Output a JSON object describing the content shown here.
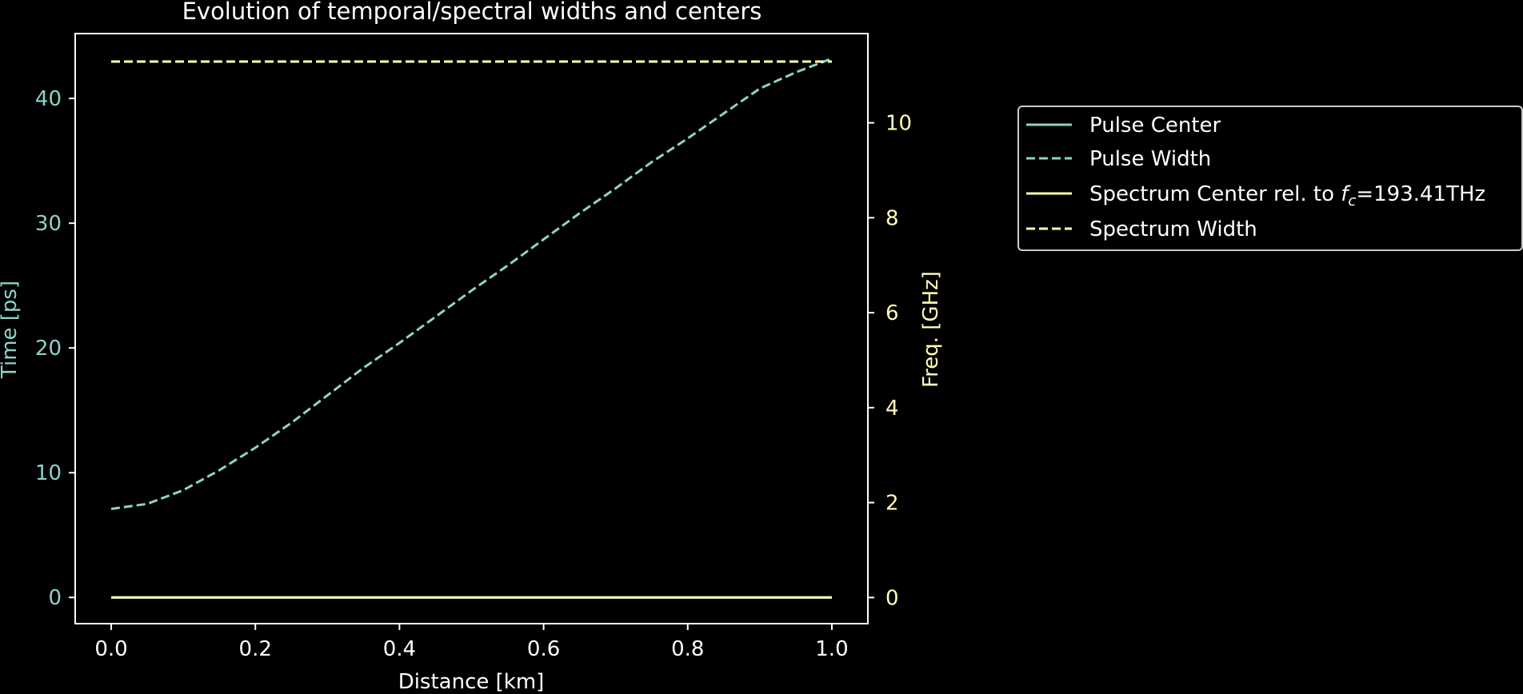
{
  "chart_data": {
    "type": "line",
    "title": "Evolution of temporal/spectral widths and centers",
    "xlabel": "Distance [km]",
    "ylabel_left": "Time [ps]",
    "ylabel_right": "Freq. [GHz]",
    "xlim": [
      -0.05,
      1.05
    ],
    "ylim_left": [
      -2.1,
      45.2
    ],
    "ylim_right": [
      -0.55,
      11.88
    ],
    "x_ticks": [
      0.0,
      0.2,
      0.4,
      0.6,
      0.8,
      1.0
    ],
    "x_tick_labels": [
      "0.0",
      "0.2",
      "0.4",
      "0.6",
      "0.8",
      "1.0"
    ],
    "y_left_ticks": [
      0,
      10,
      20,
      30,
      40
    ],
    "y_left_tick_labels": [
      "0",
      "10",
      "20",
      "30",
      "40"
    ],
    "y_right_ticks": [
      0,
      2,
      4,
      6,
      8,
      10
    ],
    "y_right_tick_labels": [
      "0",
      "2",
      "4",
      "6",
      "8",
      "10"
    ],
    "grid": false,
    "legend_placement": "outside-right",
    "x": [
      0.0,
      0.05,
      0.1,
      0.15,
      0.2,
      0.25,
      0.3,
      0.35,
      0.4,
      0.45,
      0.5,
      0.55,
      0.6,
      0.65,
      0.7,
      0.75,
      0.8,
      0.85,
      0.9,
      0.95,
      1.0
    ],
    "series": [
      {
        "name": "Pulse Center",
        "axis": "left",
        "style": "solid",
        "color": "#8dd3c7",
        "values": [
          0,
          0,
          0,
          0,
          0,
          0,
          0,
          0,
          0,
          0,
          0,
          0,
          0,
          0,
          0,
          0,
          0,
          0,
          0,
          0,
          0
        ]
      },
      {
        "name": "Pulse Width",
        "axis": "left",
        "style": "dashed",
        "color": "#8dd3c7",
        "values": [
          7.1,
          7.5,
          8.6,
          10.2,
          12.0,
          14.0,
          16.2,
          18.4,
          20.4,
          22.5,
          24.6,
          26.6,
          28.7,
          30.8,
          32.8,
          34.9,
          36.8,
          38.8,
          40.8,
          42.1,
          43.2
        ]
      },
      {
        "name": "Spectrum Center rel. to $f_c$=193.41THz",
        "axis": "right",
        "style": "solid",
        "color": "#ffffb3",
        "values": [
          0,
          0,
          0,
          0,
          0,
          0,
          0,
          0,
          0,
          0,
          0,
          0,
          0,
          0,
          0,
          0,
          0,
          0,
          0,
          0,
          0
        ]
      },
      {
        "name": "Spectrum Width",
        "axis": "right",
        "style": "dashed",
        "color": "#ffffb3",
        "values": [
          11.29,
          11.29,
          11.29,
          11.29,
          11.29,
          11.29,
          11.29,
          11.29,
          11.29,
          11.29,
          11.29,
          11.29,
          11.29,
          11.29,
          11.29,
          11.29,
          11.29,
          11.29,
          11.29,
          11.29,
          11.29
        ]
      }
    ],
    "legend": {
      "entries": [
        {
          "prefix": "Pulse Center",
          "math": "",
          "sub": "",
          "suffix": ""
        },
        {
          "prefix": "Pulse Width",
          "math": "",
          "sub": "",
          "suffix": ""
        },
        {
          "prefix": "Spectrum Center rel. to ",
          "math": "f",
          "sub": "c",
          "suffix": "=193.41THz"
        },
        {
          "prefix": "Spectrum Width",
          "math": "",
          "sub": "",
          "suffix": ""
        }
      ]
    },
    "colors": {
      "background": "#000000",
      "axes": "#ffffff",
      "left_axis_text": "#8dd3c7",
      "right_axis_text": "#ffffb3",
      "text": "#ffffff"
    }
  }
}
